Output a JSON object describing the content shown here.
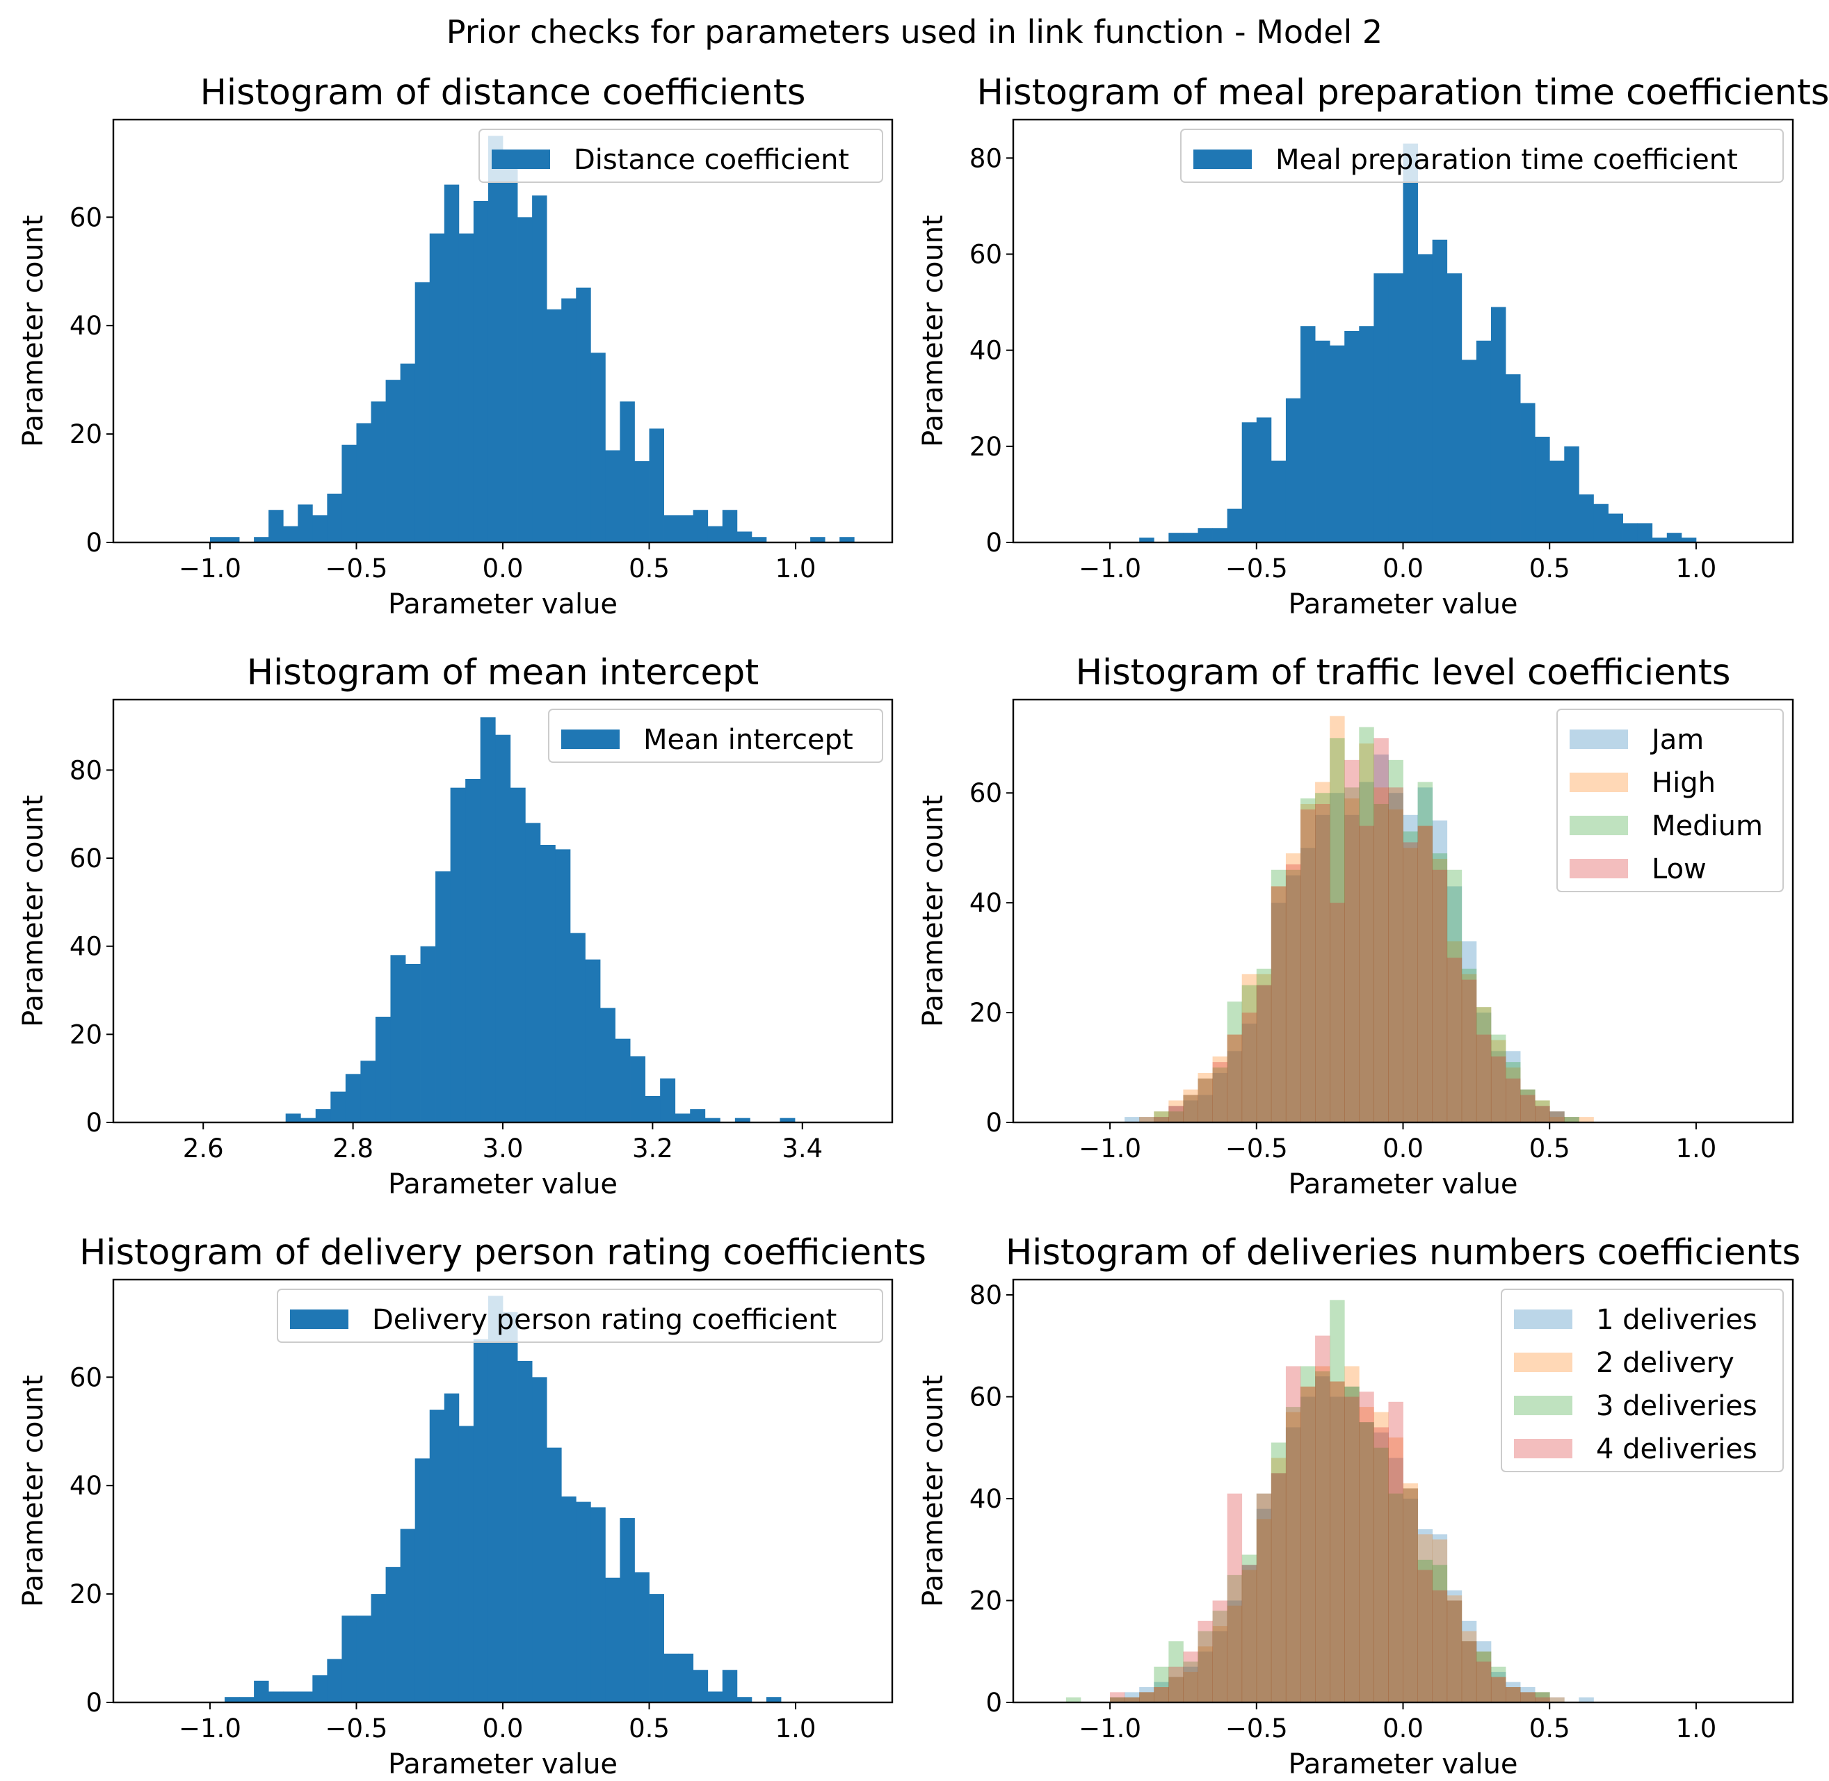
{
  "suptitle": "Prior checks for parameters used in link function - Model 2",
  "colors": {
    "blue": "#1f77b4",
    "orange": "#ff7f0e",
    "green": "#2ca02c",
    "red": "#d62728",
    "axis": "#000000",
    "legend_border": "#cccccc"
  },
  "chart_data": [
    {
      "type": "bar",
      "title": "Histogram of distance coefficients",
      "xlabel": "Parameter value",
      "ylabel": "Parameter count",
      "xlim": [
        -1.33,
        1.33
      ],
      "ylim": [
        0,
        78
      ],
      "xticks": [
        -1.0,
        -0.5,
        0.0,
        0.5,
        1.0
      ],
      "xtick_labels": [
        "−1.0",
        "−0.5",
        "0.0",
        "0.5",
        "1.0"
      ],
      "yticks": [
        0,
        20,
        40,
        60
      ],
      "legend_position": "upper right",
      "series": [
        {
          "name": "Distance coefficient",
          "color": "#1f77b4",
          "alpha": 1.0,
          "bin_start": -1.0,
          "bin_width": 0.05,
          "counts": [
            1,
            1,
            0,
            1,
            6,
            3,
            7,
            5,
            9,
            18,
            22,
            26,
            30,
            33,
            48,
            57,
            66,
            57,
            63,
            75,
            70,
            60,
            64,
            43,
            45,
            47,
            35,
            17,
            26,
            15,
            21,
            5,
            5,
            6,
            3,
            6,
            2,
            1,
            0,
            0,
            0,
            1,
            0,
            1
          ]
        }
      ]
    },
    {
      "type": "bar",
      "title": "Histogram of meal preparation time coefficients",
      "xlabel": "Parameter value",
      "ylabel": "Parameter count",
      "xlim": [
        -1.33,
        1.33
      ],
      "ylim": [
        0,
        88
      ],
      "xticks": [
        -1.0,
        -0.5,
        0.0,
        0.5,
        1.0
      ],
      "xtick_labels": [
        "−1.0",
        "−0.5",
        "0.0",
        "0.5",
        "1.0"
      ],
      "yticks": [
        0,
        20,
        40,
        60,
        80
      ],
      "legend_position": "upper right",
      "series": [
        {
          "name": "Meal preparation time coefficient",
          "color": "#1f77b4",
          "alpha": 1.0,
          "bin_start": -0.9,
          "bin_width": 0.05,
          "counts": [
            1,
            0,
            2,
            2,
            3,
            3,
            7,
            25,
            26,
            17,
            30,
            45,
            42,
            41,
            44,
            45,
            56,
            56,
            83,
            60,
            63,
            56,
            38,
            42,
            49,
            35,
            29,
            22,
            17,
            20,
            10,
            8,
            6,
            4,
            4,
            1,
            2,
            1
          ]
        }
      ]
    },
    {
      "type": "bar",
      "title": "Histogram of mean intercept",
      "xlabel": "Parameter value",
      "ylabel": "Parameter count",
      "xlim": [
        2.48,
        3.52
      ],
      "ylim": [
        0,
        96
      ],
      "xticks": [
        2.6,
        2.8,
        3.0,
        3.2,
        3.4
      ],
      "xtick_labels": [
        "2.6",
        "2.8",
        "3.0",
        "3.2",
        "3.4"
      ],
      "yticks": [
        0,
        20,
        40,
        60,
        80
      ],
      "legend_position": "upper right",
      "series": [
        {
          "name": "Mean intercept",
          "color": "#1f77b4",
          "alpha": 1.0,
          "bin_start": 2.71,
          "bin_width": 0.02,
          "counts": [
            2,
            1,
            3,
            7,
            11,
            14,
            24,
            38,
            36,
            40,
            57,
            76,
            78,
            92,
            88,
            76,
            68,
            63,
            62,
            43,
            37,
            26,
            19,
            15,
            6,
            10,
            2,
            3,
            1,
            0,
            1,
            0,
            0,
            1
          ]
        }
      ]
    },
    {
      "type": "bar",
      "title": "Histogram of traffic level coefficients",
      "xlabel": "Parameter value",
      "ylabel": "Parameter count",
      "xlim": [
        -1.33,
        1.33
      ],
      "ylim": [
        0,
        77
      ],
      "xticks": [
        -1.0,
        -0.5,
        0.0,
        0.5,
        1.0
      ],
      "xtick_labels": [
        "−1.0",
        "−0.5",
        "0.0",
        "0.5",
        "1.0"
      ],
      "yticks": [
        0,
        20,
        40,
        60
      ],
      "legend_position": "upper right",
      "bin_start": -0.95,
      "bin_width": 0.05,
      "series": [
        {
          "name": "Jam",
          "color": "#1f77b4",
          "alpha": 0.3,
          "counts": [
            1,
            0,
            1,
            3,
            4,
            5,
            9,
            13,
            18,
            25,
            40,
            45,
            50,
            56,
            60,
            56,
            62,
            67,
            60,
            56,
            61,
            55,
            43,
            33,
            20,
            13,
            13,
            6,
            3,
            2,
            1,
            0
          ]
        },
        {
          "name": "High",
          "color": "#ff7f0e",
          "alpha": 0.3,
          "counts": [
            0,
            0,
            2,
            4,
            6,
            9,
            12,
            16,
            27,
            27,
            43,
            49,
            58,
            62,
            74,
            59,
            69,
            61,
            57,
            50,
            54,
            48,
            33,
            27,
            21,
            15,
            10,
            6,
            4,
            1,
            1,
            1
          ]
        },
        {
          "name": "Medium",
          "color": "#2ca02c",
          "alpha": 0.3,
          "counts": [
            0,
            1,
            2,
            2,
            5,
            8,
            10,
            22,
            25,
            28,
            46,
            46,
            59,
            60,
            70,
            61,
            72,
            58,
            66,
            53,
            62,
            49,
            46,
            28,
            21,
            16,
            11,
            6,
            4,
            2,
            1,
            0
          ]
        },
        {
          "name": "Low",
          "color": "#d62728",
          "alpha": 0.3,
          "counts": [
            0,
            1,
            1,
            3,
            5,
            8,
            11,
            16,
            20,
            25,
            43,
            47,
            57,
            58,
            40,
            66,
            54,
            70,
            61,
            51,
            54,
            46,
            30,
            26,
            16,
            12,
            8,
            5,
            3,
            2,
            0,
            0
          ]
        }
      ]
    },
    {
      "type": "bar",
      "title": "Histogram of delivery person rating coefficients",
      "xlabel": "Parameter value",
      "ylabel": "Parameter count",
      "xlim": [
        -1.33,
        1.33
      ],
      "ylim": [
        0,
        78
      ],
      "xticks": [
        -1.0,
        -0.5,
        0.0,
        0.5,
        1.0
      ],
      "xtick_labels": [
        "−1.0",
        "−0.5",
        "0.0",
        "0.5",
        "1.0"
      ],
      "yticks": [
        0,
        20,
        40,
        60
      ],
      "legend_position": "upper right",
      "series": [
        {
          "name": "Delivery person rating coefficient",
          "color": "#1f77b4",
          "alpha": 1.0,
          "bin_start": -0.95,
          "bin_width": 0.05,
          "counts": [
            1,
            1,
            4,
            2,
            2,
            2,
            5,
            8,
            16,
            16,
            20,
            25,
            32,
            45,
            54,
            57,
            51,
            67,
            75,
            72,
            63,
            60,
            47,
            38,
            37,
            36,
            23,
            34,
            24,
            20,
            9,
            9,
            6,
            2,
            6,
            1,
            0,
            1
          ]
        }
      ]
    },
    {
      "type": "bar",
      "title": "Histogram of deliveries numbers coefficients",
      "xlabel": "Parameter value",
      "ylabel": "Parameter count",
      "xlim": [
        -1.33,
        1.33
      ],
      "ylim": [
        0,
        83
      ],
      "xticks": [
        -1.0,
        -0.5,
        0.0,
        0.5,
        1.0
      ],
      "xtick_labels": [
        "−1.0",
        "−0.5",
        "0.0",
        "0.5",
        "1.0"
      ],
      "yticks": [
        0,
        20,
        40,
        60,
        80
      ],
      "legend_position": "upper right",
      "bin_start": -1.15,
      "bin_width": 0.05,
      "series": [
        {
          "name": "1 deliveries",
          "color": "#1f77b4",
          "alpha": 0.3,
          "counts": [
            0,
            0,
            0,
            1,
            2,
            3,
            4,
            5,
            7,
            10,
            14,
            20,
            27,
            38,
            45,
            54,
            60,
            64,
            60,
            62,
            55,
            53,
            48,
            40,
            34,
            33,
            22,
            16,
            12,
            6,
            4,
            3,
            2,
            1,
            0,
            1
          ]
        },
        {
          "name": "2 delivery",
          "color": "#ff7f0e",
          "alpha": 0.3,
          "counts": [
            0,
            0,
            0,
            1,
            1,
            2,
            3,
            5,
            6,
            11,
            15,
            19,
            26,
            36,
            48,
            57,
            62,
            66,
            63,
            66,
            58,
            57,
            52,
            43,
            33,
            32,
            21,
            14,
            10,
            5,
            3,
            2,
            2,
            1,
            0,
            0
          ]
        },
        {
          "name": "3 deliveries",
          "color": "#2ca02c",
          "alpha": 0.3,
          "counts": [
            1,
            0,
            0,
            1,
            1,
            2,
            7,
            12,
            8,
            14,
            18,
            25,
            29,
            41,
            51,
            58,
            66,
            65,
            79,
            62,
            55,
            50,
            41,
            42,
            28,
            27,
            20,
            12,
            10,
            7,
            3,
            2,
            2,
            0,
            0,
            0
          ]
        },
        {
          "name": "4 deliveries",
          "color": "#d62728",
          "alpha": 0.3,
          "counts": [
            0,
            0,
            0,
            2,
            1,
            2,
            3,
            7,
            10,
            16,
            20,
            41,
            27,
            41,
            45,
            66,
            62,
            72,
            63,
            60,
            61,
            54,
            59,
            42,
            26,
            22,
            20,
            12,
            8,
            5,
            3,
            2,
            1,
            0,
            0,
            0
          ]
        }
      ]
    }
  ]
}
